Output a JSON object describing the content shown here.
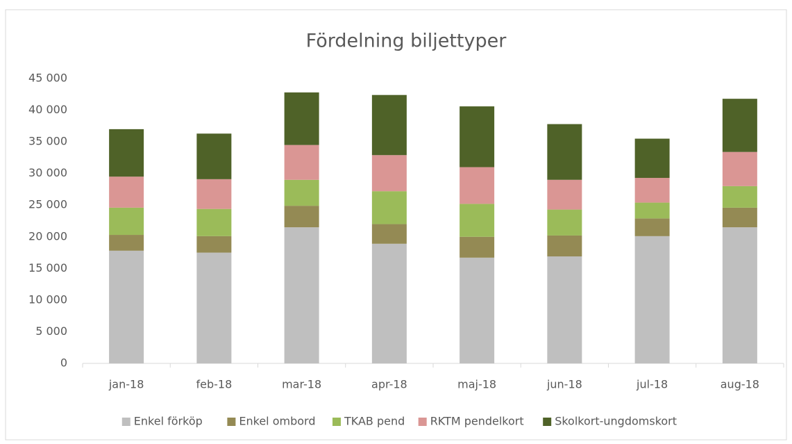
{
  "chart_data": {
    "type": "stacked_bar",
    "title": "Fördelning biljettyper",
    "categories": [
      "jan-18",
      "feb-18",
      "mar-18",
      "apr-18",
      "maj-18",
      "jun-18",
      "jul-18",
      "aug-18"
    ],
    "series": [
      {
        "name": "Enkel förköp",
        "color": "#bfbfbf",
        "values": [
          17800,
          17500,
          21500,
          18900,
          16700,
          16900,
          20100,
          21500
        ]
      },
      {
        "name": "Enkel ombord",
        "color": "#948a54",
        "values": [
          2500,
          2600,
          3400,
          3100,
          3300,
          3300,
          2800,
          3100
        ]
      },
      {
        "name": "TKAB pend",
        "color": "#9bbb59",
        "values": [
          4300,
          4300,
          4100,
          5200,
          5200,
          4100,
          2500,
          3400
        ]
      },
      {
        "name": "RKTM pendelkort",
        "color": "#da9694",
        "values": [
          4900,
          4700,
          5500,
          5700,
          5800,
          4700,
          3900,
          5400
        ]
      },
      {
        "name": "Skolkort-ungdomskort",
        "color": "#4f6228",
        "values": [
          7500,
          7200,
          8300,
          9500,
          9600,
          8800,
          6200,
          8400
        ]
      }
    ],
    "ylim": [
      0,
      45000
    ],
    "yticks": [
      0,
      {
        "value": 5000,
        "label": "5 000"
      },
      {
        "value": 10000,
        "label": "10 000"
      },
      {
        "value": 15000,
        "label": "15 000"
      },
      {
        "value": 20000,
        "label": "20 000"
      },
      {
        "value": 25000,
        "label": "25 000"
      },
      {
        "value": 30000,
        "label": "30 000"
      },
      {
        "value": 35000,
        "label": "35 000"
      },
      {
        "value": 40000,
        "label": "40 000"
      },
      {
        "value": 45000,
        "label": "45 000"
      }
    ],
    "grid": false,
    "legend": "bottom"
  }
}
